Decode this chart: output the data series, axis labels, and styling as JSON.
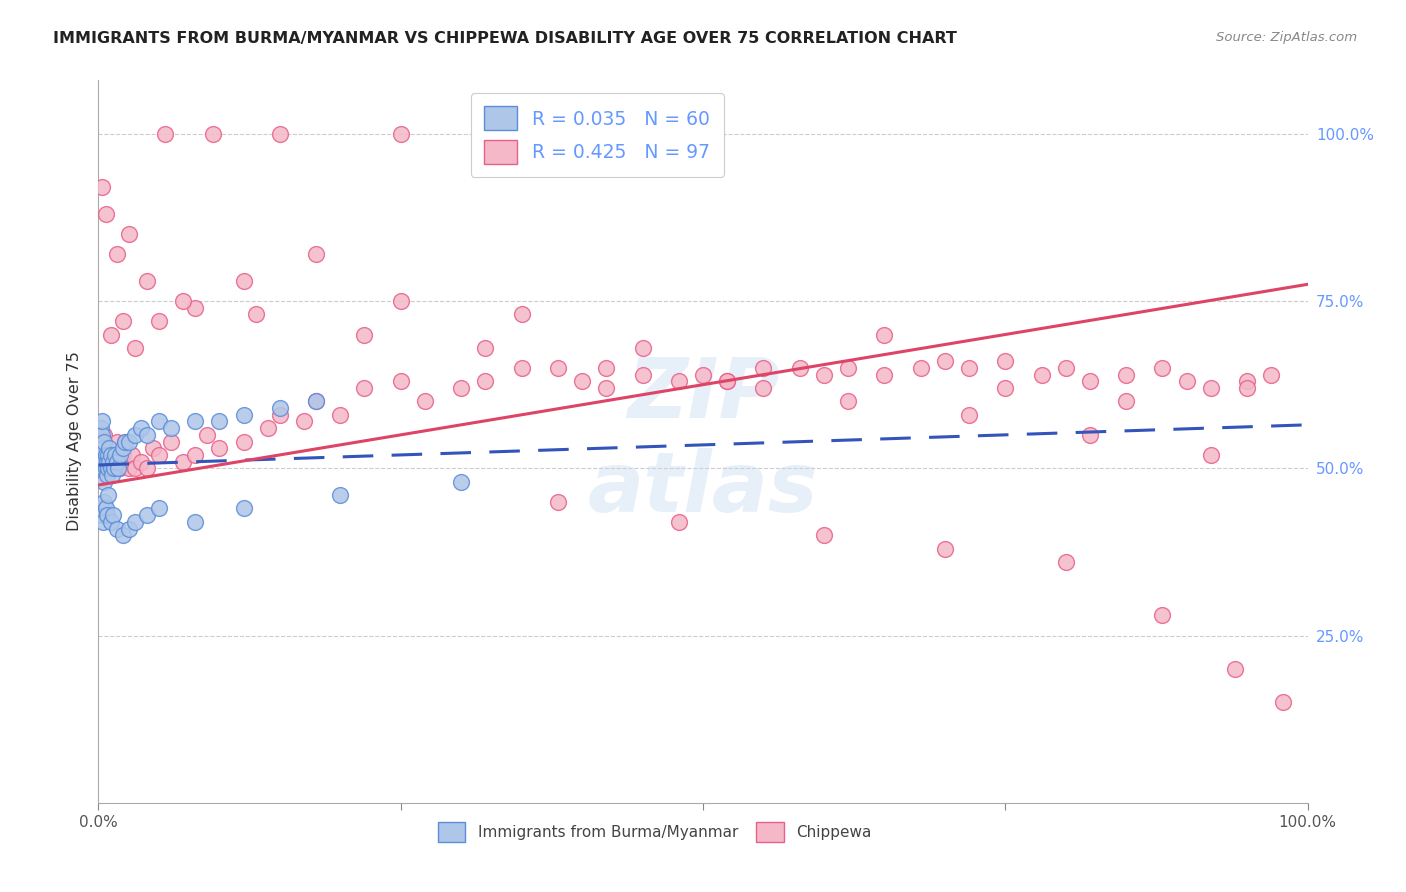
{
  "title": "IMMIGRANTS FROM BURMA/MYANMAR VS CHIPPEWA DISABILITY AGE OVER 75 CORRELATION CHART",
  "source": "Source: ZipAtlas.com",
  "ylabel": "Disability Age Over 75",
  "legend_blue_R": "0.035",
  "legend_blue_N": "60",
  "legend_pink_R": "0.425",
  "legend_pink_N": "97",
  "blue_fill_color": "#aec6e8",
  "pink_fill_color": "#f4b8c8",
  "blue_edge_color": "#5b8dd9",
  "pink_edge_color": "#e8608a",
  "blue_line_color": "#3355bb",
  "pink_line_color": "#dd4466",
  "grid_color": "#cccccc",
  "right_tick_color": "#6699ff",
  "blue_x": [
    0.001,
    0.002,
    0.002,
    0.003,
    0.003,
    0.003,
    0.004,
    0.004,
    0.005,
    0.005,
    0.005,
    0.006,
    0.006,
    0.007,
    0.007,
    0.008,
    0.008,
    0.009,
    0.009,
    0.01,
    0.01,
    0.011,
    0.012,
    0.013,
    0.014,
    0.015,
    0.016,
    0.018,
    0.02,
    0.022,
    0.025,
    0.03,
    0.035,
    0.04,
    0.05,
    0.06,
    0.08,
    0.1,
    0.12,
    0.15,
    0.18,
    0.002,
    0.003,
    0.004,
    0.005,
    0.006,
    0.007,
    0.008,
    0.01,
    0.012,
    0.015,
    0.02,
    0.025,
    0.03,
    0.04,
    0.05,
    0.08,
    0.12,
    0.2,
    0.3
  ],
  "blue_y": [
    0.51,
    0.54,
    0.56,
    0.52,
    0.55,
    0.57,
    0.5,
    0.53,
    0.48,
    0.51,
    0.54,
    0.5,
    0.52,
    0.49,
    0.51,
    0.5,
    0.52,
    0.51,
    0.53,
    0.5,
    0.52,
    0.49,
    0.51,
    0.5,
    0.52,
    0.51,
    0.5,
    0.52,
    0.53,
    0.54,
    0.54,
    0.55,
    0.56,
    0.55,
    0.57,
    0.56,
    0.57,
    0.57,
    0.58,
    0.59,
    0.6,
    0.44,
    0.43,
    0.42,
    0.45,
    0.44,
    0.43,
    0.46,
    0.42,
    0.43,
    0.41,
    0.4,
    0.41,
    0.42,
    0.43,
    0.44,
    0.42,
    0.44,
    0.46,
    0.48
  ],
  "pink_x": [
    0.005,
    0.01,
    0.015,
    0.018,
    0.02,
    0.022,
    0.025,
    0.028,
    0.03,
    0.035,
    0.04,
    0.045,
    0.05,
    0.06,
    0.07,
    0.08,
    0.09,
    0.1,
    0.12,
    0.14,
    0.15,
    0.17,
    0.18,
    0.2,
    0.22,
    0.25,
    0.27,
    0.3,
    0.32,
    0.35,
    0.38,
    0.4,
    0.42,
    0.45,
    0.48,
    0.5,
    0.52,
    0.55,
    0.58,
    0.6,
    0.62,
    0.65,
    0.68,
    0.7,
    0.72,
    0.75,
    0.78,
    0.8,
    0.82,
    0.85,
    0.88,
    0.9,
    0.92,
    0.95,
    0.97,
    0.01,
    0.02,
    0.03,
    0.05,
    0.08,
    0.12,
    0.18,
    0.25,
    0.35,
    0.45,
    0.55,
    0.65,
    0.75,
    0.85,
    0.95,
    0.006,
    0.015,
    0.04,
    0.07,
    0.13,
    0.22,
    0.32,
    0.42,
    0.52,
    0.62,
    0.72,
    0.82,
    0.92,
    0.003,
    0.025,
    0.055,
    0.095,
    0.15,
    0.25,
    0.38,
    0.48,
    0.6,
    0.7,
    0.8,
    0.88,
    0.94,
    0.98
  ],
  "pink_y": [
    0.55,
    0.52,
    0.54,
    0.5,
    0.52,
    0.54,
    0.5,
    0.52,
    0.5,
    0.51,
    0.5,
    0.53,
    0.52,
    0.54,
    0.51,
    0.52,
    0.55,
    0.53,
    0.54,
    0.56,
    0.58,
    0.57,
    0.6,
    0.58,
    0.62,
    0.63,
    0.6,
    0.62,
    0.63,
    0.65,
    0.65,
    0.63,
    0.62,
    0.64,
    0.63,
    0.64,
    0.63,
    0.62,
    0.65,
    0.64,
    0.65,
    0.64,
    0.65,
    0.66,
    0.65,
    0.66,
    0.64,
    0.65,
    0.63,
    0.64,
    0.65,
    0.63,
    0.62,
    0.63,
    0.64,
    0.7,
    0.72,
    0.68,
    0.72,
    0.74,
    0.78,
    0.82,
    0.75,
    0.73,
    0.68,
    0.65,
    0.7,
    0.62,
    0.6,
    0.62,
    0.88,
    0.82,
    0.78,
    0.75,
    0.73,
    0.7,
    0.68,
    0.65,
    0.63,
    0.6,
    0.58,
    0.55,
    0.52,
    0.92,
    0.85,
    1.0,
    1.0,
    1.0,
    1.0,
    0.45,
    0.42,
    0.4,
    0.38,
    0.36,
    0.28,
    0.2,
    0.15
  ],
  "xlim": [
    0.0,
    1.0
  ],
  "ylim": [
    0.0,
    1.08
  ],
  "yticks": [
    0.0,
    0.25,
    0.5,
    0.75,
    1.0
  ],
  "ytick_labels_right": [
    "",
    "25.0%",
    "50.0%",
    "75.0%",
    "100.0%"
  ],
  "xtick_labels": [
    "0.0%",
    "",
    "",
    "",
    "100.0%"
  ]
}
